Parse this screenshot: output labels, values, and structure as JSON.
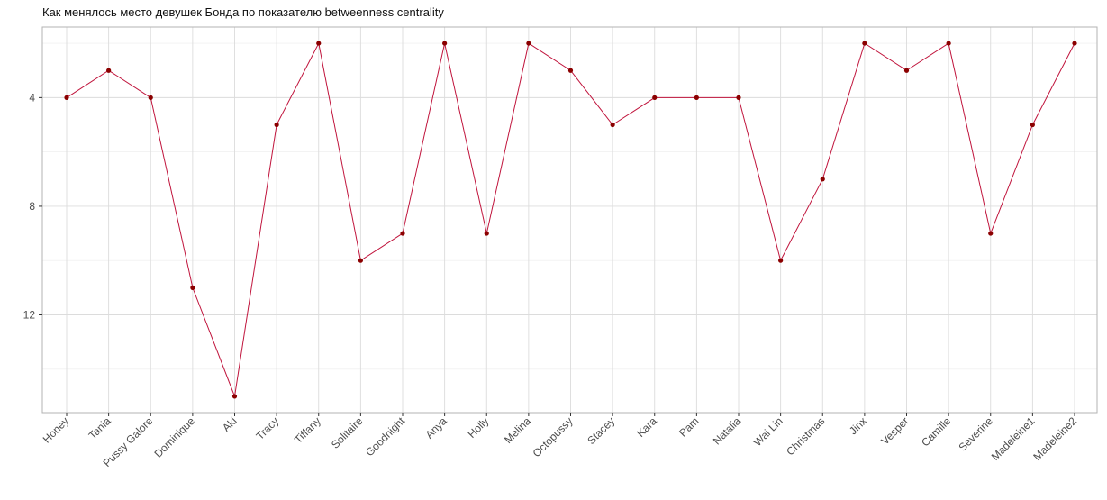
{
  "chart_data": {
    "type": "line",
    "title": "Как менялось место девушек Бонда по показателю betweenness centrality",
    "xlabel": "",
    "ylabel": "",
    "categories": [
      "Honey",
      "Tania",
      "Pussy Galore",
      "Dominique",
      "Aki",
      "Tracy",
      "Tiffany",
      "Solitaire",
      "Goodnight",
      "Anya",
      "Holly",
      "Melina",
      "Octopussy",
      "Stacey",
      "Kara",
      "Pam",
      "Natalia",
      "Wai Lin",
      "Christmas",
      "Jinx",
      "Vesper",
      "Camille",
      "Severine",
      "Madeleine1",
      "Madeleine2"
    ],
    "series": [
      {
        "values": [
          4,
          3,
          4,
          11,
          15,
          5,
          2,
          10,
          9,
          2,
          9,
          2,
          3,
          5,
          4,
          4,
          4,
          10,
          7,
          2,
          3,
          2,
          9,
          5,
          2
        ]
      }
    ],
    "y_reversed": true,
    "ylim": [
      1.4,
      15.6
    ],
    "yticks": [
      4,
      8,
      12
    ],
    "grid": true,
    "colors": {
      "line": "#c0143c",
      "point": "#8b0000",
      "panel_border": "#b3b3b3"
    }
  }
}
